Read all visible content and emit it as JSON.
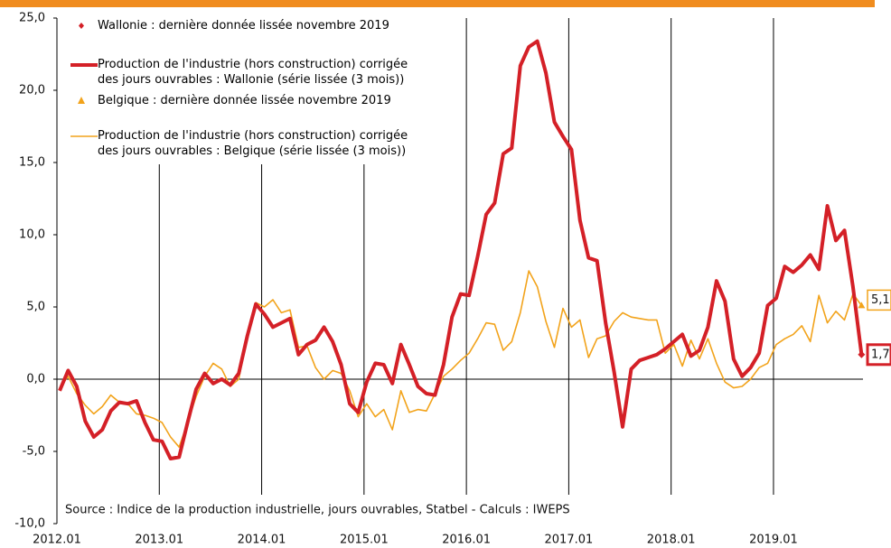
{
  "chart_data": {
    "type": "line",
    "annotation": "Source : Indice de la production industrielle, jours ouvrables, Statbel - Calculs : IWEPS",
    "categories": [
      "2012.01",
      null,
      null,
      null,
      null,
      null,
      null,
      null,
      null,
      null,
      null,
      null,
      "2013.01",
      null,
      null,
      null,
      null,
      null,
      null,
      null,
      null,
      null,
      null,
      null,
      "2014.01",
      null,
      null,
      null,
      null,
      null,
      null,
      null,
      null,
      null,
      null,
      null,
      "2015.01",
      null,
      null,
      null,
      null,
      null,
      null,
      null,
      null,
      null,
      null,
      null,
      "2016.01",
      null,
      null,
      null,
      null,
      null,
      null,
      null,
      null,
      null,
      null,
      null,
      "2017.01",
      null,
      null,
      null,
      null,
      null,
      null,
      null,
      null,
      null,
      null,
      null,
      "2018.01",
      null,
      null,
      null,
      null,
      null,
      null,
      null,
      null,
      null,
      null,
      null,
      "2019.01",
      null,
      null,
      null,
      null,
      null,
      null,
      null,
      null,
      null,
      null
    ],
    "series": [
      {
        "name": "Production de l'industrie (hors construction) corrigée des jours ouvrables : Wallonie (série lissée (3 mois))",
        "marker_label": "Wallonie : dernière donnée lissée novembre 2019",
        "color": "#d42027",
        "values": [
          -0.8,
          0.6,
          -0.5,
          -2.9,
          -4.0,
          -3.5,
          -2.2,
          -1.6,
          -1.7,
          -1.5,
          -3.0,
          -4.2,
          -4.3,
          -5.5,
          -5.4,
          -3.0,
          -0.7,
          0.4,
          -0.3,
          0.0,
          -0.4,
          0.4,
          3.0,
          5.2,
          4.5,
          3.6,
          3.9,
          4.2,
          1.7,
          2.4,
          2.7,
          3.6,
          2.6,
          1.0,
          -1.7,
          -2.3,
          -0.2,
          1.1,
          1.0,
          -0.3,
          2.4,
          1.0,
          -0.5,
          -1.0,
          -1.1,
          1.0,
          4.3,
          5.9,
          5.8,
          8.5,
          11.4,
          12.2,
          15.6,
          16.0,
          21.7,
          23.0,
          23.4,
          21.2,
          17.8,
          16.8,
          15.9,
          11.0,
          8.4,
          8.2,
          3.9,
          0.5,
          -3.3,
          0.7,
          1.3,
          1.5,
          1.7,
          2.1,
          2.6,
          3.1,
          1.6,
          2.0,
          3.6,
          6.8,
          5.4,
          1.4,
          0.2,
          0.8,
          1.8,
          5.1,
          5.6,
          7.8,
          7.4,
          7.9,
          8.6,
          7.6,
          12.0,
          9.6,
          10.3,
          6.4,
          1.7
        ],
        "value_labels": [
          null,
          null,
          null,
          null,
          null,
          null,
          null,
          null,
          null,
          null,
          null,
          null,
          null,
          null,
          null,
          null,
          null,
          null,
          null,
          null,
          null,
          null,
          null,
          null,
          null,
          null,
          null,
          null,
          null,
          null,
          null,
          null,
          null,
          null,
          null,
          null,
          null,
          null,
          null,
          null,
          null,
          null,
          null,
          null,
          null,
          null,
          null,
          null,
          null,
          null,
          null,
          null,
          null,
          null,
          null,
          null,
          null,
          null,
          null,
          null,
          null,
          null,
          null,
          null,
          null,
          null,
          null,
          null,
          null,
          null,
          null,
          null,
          null,
          null,
          null,
          null,
          null,
          null,
          null,
          null,
          null,
          null,
          null,
          null,
          null,
          null,
          null,
          null,
          null,
          null,
          null,
          null,
          null,
          null,
          "1,7"
        ]
      },
      {
        "name": "Production de l'industrie (hors construction) corrigée des jours ouvrables : Belgique (série lissée (3 mois))",
        "marker_label": "Belgique : dernière donnée lissée novembre 2019",
        "color": "#f2a31b",
        "values": [
          -0.6,
          0.2,
          -1.0,
          -1.8,
          -2.4,
          -1.9,
          -1.1,
          -1.6,
          -1.7,
          -2.4,
          -2.5,
          -2.7,
          -3.0,
          -4.0,
          -4.7,
          -3.0,
          -1.2,
          0.2,
          1.1,
          0.7,
          -0.5,
          0.0,
          2.9,
          5.3,
          5.0,
          5.5,
          4.6,
          4.8,
          2.2,
          2.3,
          0.8,
          0.0,
          0.6,
          0.4,
          -0.8,
          -2.6,
          -1.7,
          -2.6,
          -2.1,
          -3.5,
          -0.8,
          -2.3,
          -2.1,
          -2.2,
          -1.0,
          0.2,
          0.7,
          1.3,
          1.8,
          2.8,
          3.9,
          3.8,
          2.0,
          2.6,
          4.6,
          7.5,
          6.4,
          4.0,
          2.2,
          4.9,
          3.6,
          4.1,
          1.5,
          2.8,
          3.0,
          4.0,
          4.6,
          4.3,
          4.2,
          4.1,
          4.1,
          1.8,
          2.4,
          0.9,
          2.7,
          1.4,
          2.8,
          1.1,
          -0.2,
          -0.6,
          -0.5,
          0.0,
          0.8,
          1.1,
          2.4,
          2.8,
          3.1,
          3.7,
          2.6,
          5.8,
          3.9,
          4.7,
          4.1,
          5.9,
          5.1
        ],
        "value_labels": [
          null,
          null,
          null,
          null,
          null,
          null,
          null,
          null,
          null,
          null,
          null,
          null,
          null,
          null,
          null,
          null,
          null,
          null,
          null,
          null,
          null,
          null,
          null,
          null,
          null,
          null,
          null,
          null,
          null,
          null,
          null,
          null,
          null,
          null,
          null,
          null,
          null,
          null,
          null,
          null,
          null,
          null,
          null,
          null,
          null,
          null,
          null,
          null,
          null,
          null,
          null,
          null,
          null,
          null,
          null,
          null,
          null,
          null,
          null,
          null,
          null,
          null,
          null,
          null,
          null,
          null,
          null,
          null,
          null,
          null,
          null,
          null,
          null,
          null,
          null,
          null,
          null,
          null,
          null,
          null,
          null,
          null,
          null,
          null,
          null,
          null,
          null,
          null,
          null,
          null,
          null,
          null,
          null,
          null,
          "5,1"
        ]
      }
    ],
    "ylim": [
      -10,
      25
    ],
    "yticks": [
      {
        "value": -10,
        "label": "-10,0"
      },
      {
        "value": -5,
        "label": "-5,0"
      },
      {
        "value": 0,
        "label": "0,0"
      },
      {
        "value": 5,
        "label": "5,0"
      },
      {
        "value": 10,
        "label": "10,0"
      },
      {
        "value": 15,
        "label": "15,0"
      },
      {
        "value": 20,
        "label": "20,0"
      },
      {
        "value": 25,
        "label": "25,0"
      }
    ]
  }
}
